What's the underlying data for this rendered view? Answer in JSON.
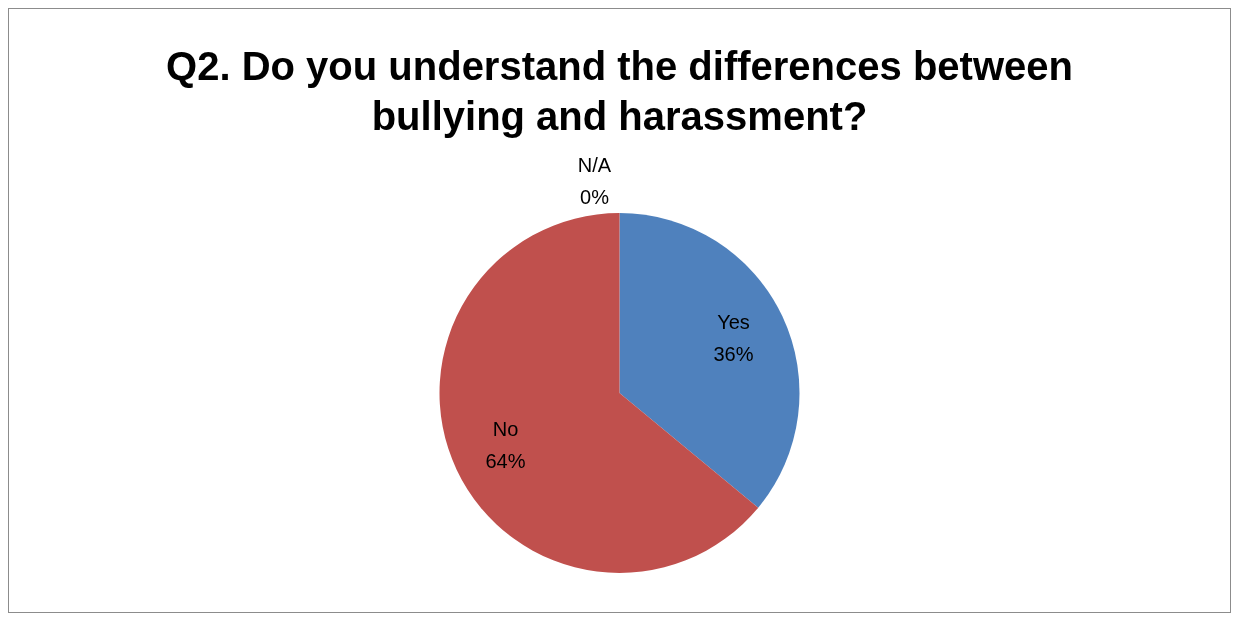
{
  "chart_data": {
    "type": "pie",
    "title": "Q2. Do you understand the differences between bullying and harassment?",
    "categories": [
      "Yes",
      "No",
      "N/A"
    ],
    "values": [
      36,
      64,
      0
    ],
    "colors": [
      "#4f81bd",
      "#c0504d",
      "#9bbb59"
    ],
    "value_labels": [
      "36%",
      "64%",
      "0%"
    ],
    "legend": false
  }
}
